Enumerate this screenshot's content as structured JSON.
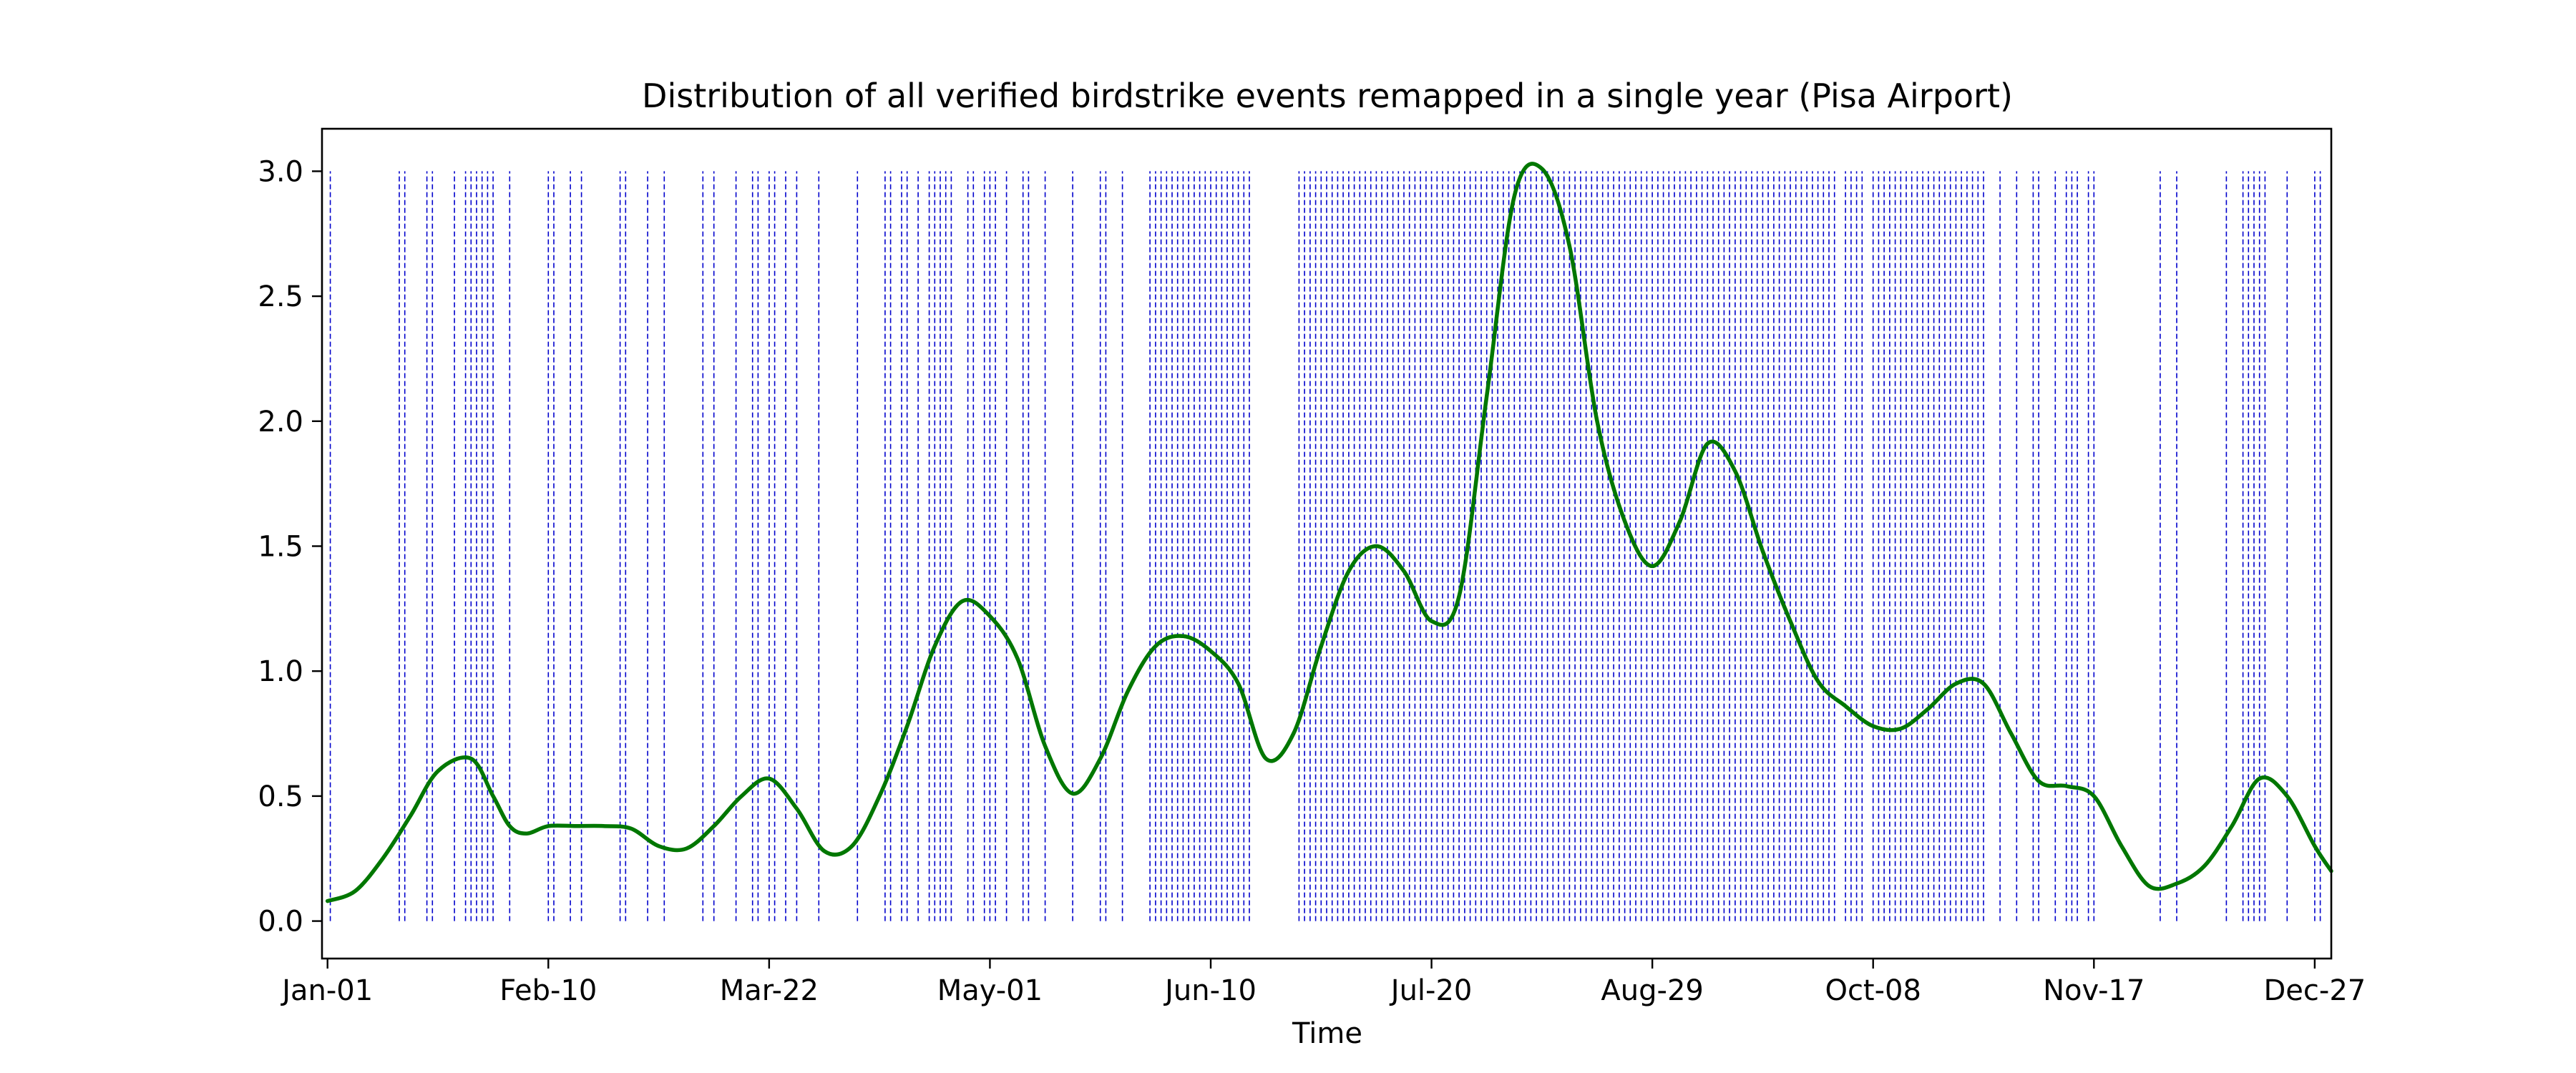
{
  "chart_data": {
    "type": "line",
    "title": "Distribution of all verified birdstrike events remapped in a single year (Pisa Airport)",
    "xlabel": "Time",
    "ylabel": "",
    "xlim": [
      -1,
      363
    ],
    "ylim": [
      -0.15,
      3.17
    ],
    "grid": false,
    "legend": "none",
    "x_ticks": [
      {
        "x": 0,
        "label": "Jan-01"
      },
      {
        "x": 40,
        "label": "Feb-10"
      },
      {
        "x": 80,
        "label": "Mar-22"
      },
      {
        "x": 120,
        "label": "May-01"
      },
      {
        "x": 160,
        "label": "Jun-10"
      },
      {
        "x": 200,
        "label": "Jul-20"
      },
      {
        "x": 240,
        "label": "Aug-29"
      },
      {
        "x": 280,
        "label": "Oct-08"
      },
      {
        "x": 320,
        "label": "Nov-17"
      },
      {
        "x": 360,
        "label": "Dec-27"
      }
    ],
    "y_ticks": [
      {
        "y": 0.0,
        "label": "0.0"
      },
      {
        "y": 0.5,
        "label": "0.5"
      },
      {
        "y": 1.0,
        "label": "1.0"
      },
      {
        "y": 1.5,
        "label": "1.5"
      },
      {
        "y": 2.0,
        "label": "2.0"
      },
      {
        "y": 2.5,
        "label": "2.5"
      },
      {
        "y": 3.0,
        "label": "3.0"
      }
    ],
    "event_lines": {
      "color": "#0000cc",
      "y_range": [
        0,
        3.0
      ],
      "dates": [
        0.5,
        13,
        14,
        18,
        19,
        23,
        25,
        26,
        27,
        28,
        29,
        30,
        33,
        40,
        41,
        44,
        46,
        53,
        54,
        58,
        61,
        68,
        70,
        74,
        77,
        78,
        80,
        81,
        83,
        85,
        89,
        96,
        101,
        102,
        104,
        105,
        107,
        109,
        110,
        111,
        112,
        113,
        116,
        117,
        119,
        120,
        121,
        123,
        126,
        127,
        130,
        135,
        140,
        141,
        144,
        149,
        150,
        151,
        152,
        153,
        154,
        155,
        156,
        157,
        158,
        159,
        160,
        161,
        162,
        163,
        164,
        165,
        166,
        167,
        176,
        177,
        178,
        179,
        180,
        181,
        182,
        183,
        184,
        185,
        186,
        187,
        188,
        189,
        190,
        191,
        192,
        193,
        194,
        195,
        196,
        197,
        198,
        199,
        200,
        201,
        202,
        203,
        204,
        205,
        206,
        207,
        208,
        209,
        210,
        211,
        212,
        213,
        214,
        215,
        216,
        217,
        218,
        219,
        220,
        221,
        222,
        223,
        224,
        225,
        226,
        227,
        228,
        229,
        230,
        231,
        232,
        233,
        234,
        235,
        236,
        237,
        238,
        239,
        240,
        241,
        242,
        243,
        244,
        245,
        246,
        247,
        248,
        249,
        250,
        251,
        252,
        253,
        254,
        255,
        256,
        257,
        258,
        259,
        260,
        261,
        262,
        263,
        264,
        265,
        266,
        267,
        268,
        269,
        270,
        271,
        272,
        273,
        275,
        276,
        277,
        278,
        280,
        281,
        282,
        283,
        284,
        285,
        286,
        287,
        288,
        289,
        290,
        291,
        292,
        293,
        294,
        295,
        296,
        297,
        298,
        299,
        300,
        303,
        306,
        309,
        310,
        313,
        315,
        316,
        317,
        319,
        320,
        332,
        335,
        344,
        347,
        348,
        349,
        350,
        351,
        355,
        360,
        361
      ]
    },
    "series": [
      {
        "color": "#007700",
        "x": [
          0,
          5,
          10,
          15,
          20,
          26,
          30,
          33,
          36,
          40,
          45,
          50,
          55,
          60,
          65,
          70,
          75,
          80,
          85,
          90,
          95,
          100,
          105,
          110,
          115,
          120,
          125,
          130,
          135,
          140,
          145,
          150,
          155,
          160,
          165,
          170,
          175,
          180,
          185,
          190,
          195,
          200,
          205,
          210,
          215,
          220,
          225,
          230,
          235,
          240,
          245,
          250,
          255,
          260,
          265,
          270,
          275,
          280,
          285,
          290,
          295,
          300,
          305,
          310,
          315,
          320,
          325,
          330,
          335,
          340,
          345,
          350,
          355,
          360,
          363
        ],
        "y": [
          0.08,
          0.12,
          0.25,
          0.42,
          0.6,
          0.65,
          0.5,
          0.38,
          0.35,
          0.38,
          0.38,
          0.38,
          0.37,
          0.3,
          0.29,
          0.38,
          0.5,
          0.57,
          0.45,
          0.28,
          0.3,
          0.5,
          0.78,
          1.1,
          1.28,
          1.22,
          1.05,
          0.7,
          0.51,
          0.65,
          0.92,
          1.1,
          1.14,
          1.08,
          0.95,
          0.65,
          0.75,
          1.1,
          1.4,
          1.5,
          1.4,
          1.2,
          1.3,
          2.1,
          2.9,
          3.01,
          2.7,
          2.0,
          1.6,
          1.42,
          1.6,
          1.91,
          1.8,
          1.48,
          1.2,
          0.96,
          0.86,
          0.78,
          0.77,
          0.85,
          0.95,
          0.95,
          0.75,
          0.56,
          0.54,
          0.5,
          0.3,
          0.14,
          0.15,
          0.22,
          0.38,
          0.57,
          0.5,
          0.3,
          0.2
        ]
      }
    ]
  }
}
